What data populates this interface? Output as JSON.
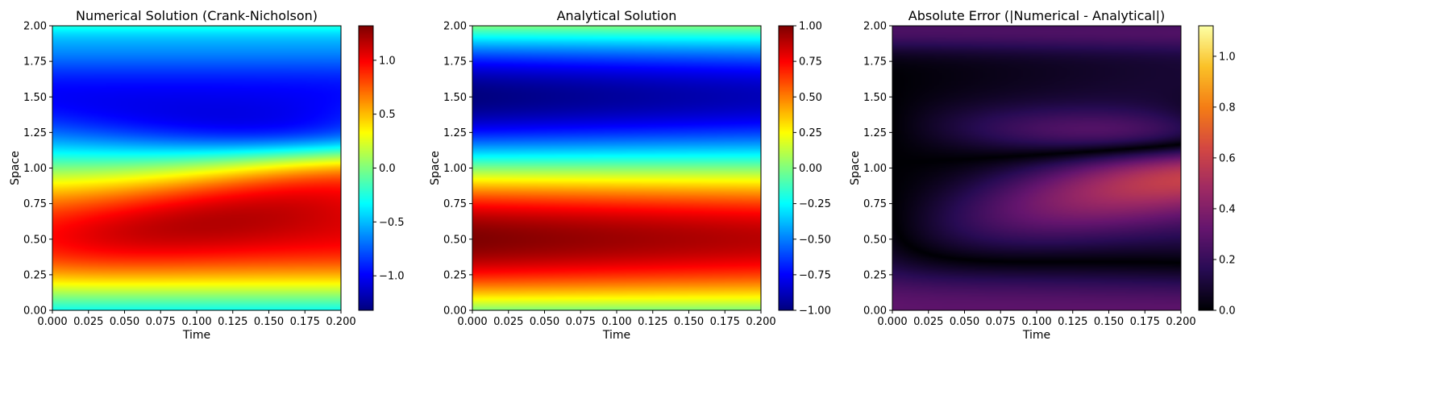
{
  "chart_data": [
    {
      "type": "heatmap",
      "title": "Numerical Solution (Crank-Nicholson)",
      "xlabel": "Time",
      "ylabel": "Space",
      "xlim": [
        0,
        0.2
      ],
      "ylim": [
        0,
        2
      ],
      "x_ticks": [
        "0.000",
        "0.025",
        "0.050",
        "0.075",
        "0.100",
        "0.125",
        "0.150",
        "0.175",
        "0.200"
      ],
      "y_ticks": [
        "0.00",
        "0.25",
        "0.50",
        "0.75",
        "1.00",
        "1.25",
        "1.50",
        "1.75",
        "2.00"
      ],
      "colormap": "jet",
      "colorbar": {
        "range": [
          -1.32,
          1.32
        ],
        "ticks": [
          "-1.0",
          "-0.5",
          "0.0",
          "0.5",
          "1.0"
        ]
      },
      "grid": false
    },
    {
      "type": "heatmap",
      "title": "Analytical Solution",
      "xlabel": "Time",
      "ylabel": "Space",
      "xlim": [
        0,
        0.2
      ],
      "ylim": [
        0,
        2
      ],
      "x_ticks": [
        "0.000",
        "0.025",
        "0.050",
        "0.075",
        "0.100",
        "0.125",
        "0.150",
        "0.175",
        "0.200"
      ],
      "y_ticks": [
        "0.00",
        "0.25",
        "0.50",
        "0.75",
        "1.00",
        "1.25",
        "1.50",
        "1.75",
        "2.00"
      ],
      "colormap": "jet",
      "colorbar": {
        "range": [
          -1,
          1
        ],
        "ticks": [
          "-1.00",
          "-0.75",
          "-0.50",
          "-0.25",
          "0.00",
          "0.25",
          "0.50",
          "0.75",
          "1.00"
        ]
      },
      "grid": false
    },
    {
      "type": "heatmap",
      "title": "Absolute Error (|Numerical - Analytical|)",
      "xlabel": "Time",
      "ylabel": "Space",
      "xlim": [
        0,
        0.2
      ],
      "ylim": [
        0,
        2
      ],
      "x_ticks": [
        "0.000",
        "0.025",
        "0.050",
        "0.075",
        "0.100",
        "0.125",
        "0.150",
        "0.175",
        "0.200"
      ],
      "y_ticks": [
        "0.00",
        "0.25",
        "0.50",
        "0.75",
        "1.00",
        "1.25",
        "1.50",
        "1.75",
        "2.00"
      ],
      "colormap": "inferno",
      "colorbar": {
        "range": [
          0,
          1.12
        ],
        "ticks": [
          "0.0",
          "0.2",
          "0.4",
          "0.6",
          "0.8",
          "1.0"
        ]
      },
      "grid": false
    }
  ]
}
